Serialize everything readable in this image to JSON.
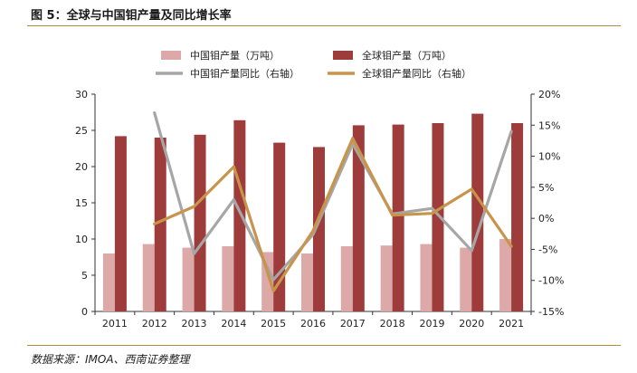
{
  "title": "图 5：全球与中国钼产量及同比增长率",
  "source": "数据来源：IMOA、西南证券整理",
  "colors": {
    "china_bar": "#dca9a8",
    "global_bar": "#9e3b3b",
    "china_line": "#a6a6a6",
    "global_line": "#c8944a",
    "rule": "#b38a3d"
  },
  "chart_data": {
    "type": "bar",
    "categories": [
      "2011",
      "2012",
      "2013",
      "2014",
      "2015",
      "2016",
      "2017",
      "2018",
      "2019",
      "2020",
      "2021"
    ],
    "left_axis": {
      "ylim": [
        0,
        30
      ],
      "ticks": [
        "0",
        "5",
        "10",
        "15",
        "20",
        "25",
        "30"
      ]
    },
    "right_axis": {
      "ylim": [
        -15,
        20
      ],
      "ticks": [
        "-15%",
        "-10%",
        "-5%",
        "0%",
        "5%",
        "10%",
        "15%",
        "20%"
      ]
    },
    "legend_position": "top",
    "grid": false,
    "series": [
      {
        "name": "中国钼产量（万吨）",
        "type": "bar",
        "axis": "left",
        "values": [
          8.0,
          9.3,
          8.8,
          9.0,
          8.2,
          8.0,
          9.0,
          9.1,
          9.3,
          8.8,
          10.0
        ]
      },
      {
        "name": "全球钼产量（万吨）",
        "type": "bar",
        "axis": "left",
        "values": [
          24.2,
          24.0,
          24.4,
          26.4,
          23.3,
          22.7,
          25.7,
          25.8,
          26.0,
          27.3,
          26.0
        ]
      },
      {
        "name": "中国钼产量同比（右轴）",
        "type": "line",
        "axis": "right",
        "values": [
          null,
          17.0,
          -5.7,
          3.0,
          -9.9,
          -2.6,
          12.0,
          0.7,
          1.6,
          -5.2,
          14.0
        ]
      },
      {
        "name": "全球钼产量同比（右轴）",
        "type": "line",
        "axis": "right",
        "values": [
          null,
          -0.9,
          1.9,
          8.3,
          -11.7,
          -2.0,
          12.9,
          0.5,
          0.8,
          4.7,
          -4.5
        ]
      }
    ]
  }
}
